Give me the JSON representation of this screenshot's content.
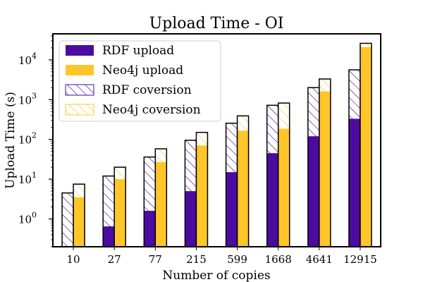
{
  "chart_data": {
    "type": "bar",
    "title": "Upload Time - OI",
    "xlabel": "Number of copies",
    "ylabel": "Upload Time (s)",
    "yscale": "log",
    "ylim": [
      0.2,
      45000
    ],
    "categories": [
      "10",
      "27",
      "77",
      "215",
      "599",
      "1668",
      "4641",
      "12915"
    ],
    "y_ticks": [
      {
        "value": 1,
        "base": "10",
        "exp": "0"
      },
      {
        "value": 10,
        "base": "10",
        "exp": "1"
      },
      {
        "value": 100,
        "base": "10",
        "exp": "2"
      },
      {
        "value": 1000,
        "base": "10",
        "exp": "3"
      },
      {
        "value": 10000,
        "base": "10",
        "exp": "4"
      }
    ],
    "legend_position": "top-left",
    "series": [
      {
        "name": "RDF upload",
        "group": "RDF",
        "part": "upload",
        "style": "solid",
        "color": "#4b0aa0",
        "values": [
          0,
          0.65,
          1.6,
          5.0,
          15,
          45,
          120,
          330
        ]
      },
      {
        "name": "Neo4j upload",
        "group": "Neo4j",
        "part": "upload",
        "style": "solid",
        "color": "#ffc629",
        "values": [
          3.5,
          10,
          27,
          70,
          165,
          185,
          1600,
          21000
        ]
      },
      {
        "name": "RDF coversion",
        "group": "RDF",
        "part": "total",
        "style": "hatch",
        "color": "#4b0aa0",
        "values": [
          4.5,
          12,
          36,
          95,
          255,
          720,
          2000,
          5600
        ]
      },
      {
        "name": "Neo4j coversion",
        "group": "Neo4j",
        "part": "total",
        "style": "hatch",
        "color": "#ffc629",
        "values": [
          7.5,
          20,
          58,
          150,
          390,
          820,
          3300,
          26000
        ]
      }
    ]
  }
}
